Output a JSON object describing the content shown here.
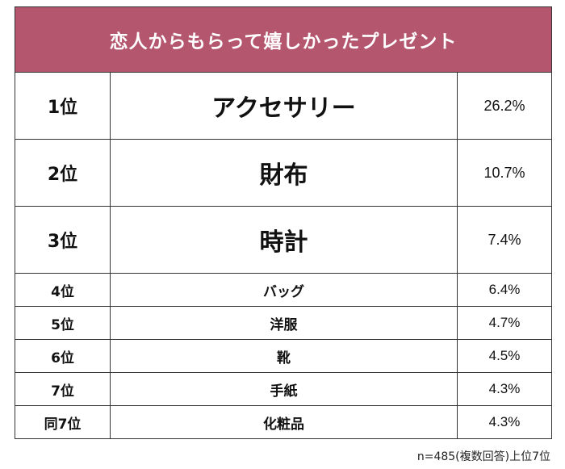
{
  "title": "恋人からもらって嬉しかったプレゼント",
  "rows": [
    {
      "rank": "1位",
      "item": "アクセサリー",
      "percent": "26.2%"
    },
    {
      "rank": "2位",
      "item": "財布",
      "percent": "10.7%"
    },
    {
      "rank": "3位",
      "item": "時計",
      "percent": "7.4%"
    },
    {
      "rank": "4位",
      "item": "バッグ",
      "percent": "6.4%"
    },
    {
      "rank": "5位",
      "item": "洋服",
      "percent": "4.7%"
    },
    {
      "rank": "6位",
      "item": "靴",
      "percent": "4.5%"
    },
    {
      "rank": "7位",
      "item": "手紙",
      "percent": "4.3%"
    },
    {
      "rank": "同7位",
      "item": "化粧品",
      "percent": "4.3%"
    }
  ],
  "footnote": "n=485(複数回答)上位7位",
  "colors": {
    "header_background": "#b5566f",
    "header_text": "#ffffff",
    "border": "#333333"
  }
}
